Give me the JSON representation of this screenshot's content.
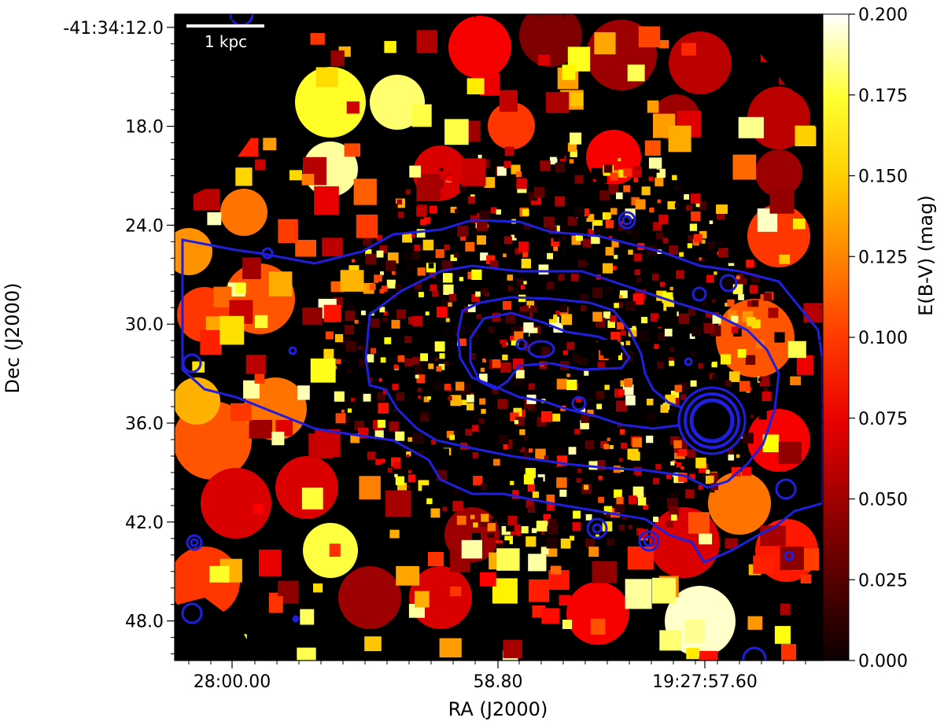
{
  "chart_data": {
    "type": "heatmap",
    "title": "",
    "xlabel": "RA (J2000)",
    "ylabel": "Dec (J2000)",
    "x_tick_labels": [
      "28:00.00",
      "58.80",
      "19:27:57.60"
    ],
    "y_tick_labels": [
      "-41:34:12.0",
      "18.0",
      "24.0",
      "30.0",
      "36.0",
      "42.0",
      "48.0"
    ],
    "y_tick_values_arcsec": [
      12,
      18,
      24,
      30,
      36,
      42,
      48
    ],
    "ylim_arcsec": [
      11.2,
      50.4
    ],
    "colorbar": {
      "label": "E(B-V) (mag)",
      "min": 0.0,
      "max": 0.2,
      "ticks": [
        "0.000",
        "0.025",
        "0.050",
        "0.075",
        "0.100",
        "0.125",
        "0.150",
        "0.175",
        "0.200"
      ],
      "tick_values": [
        0.0,
        0.025,
        0.05,
        0.075,
        0.1,
        0.125,
        0.15,
        0.175,
        0.2
      ],
      "colormap": "hot"
    },
    "scalebar": {
      "label": "1 kpc"
    },
    "contour_color": "#1f1fdd",
    "background_color": "#000000"
  }
}
